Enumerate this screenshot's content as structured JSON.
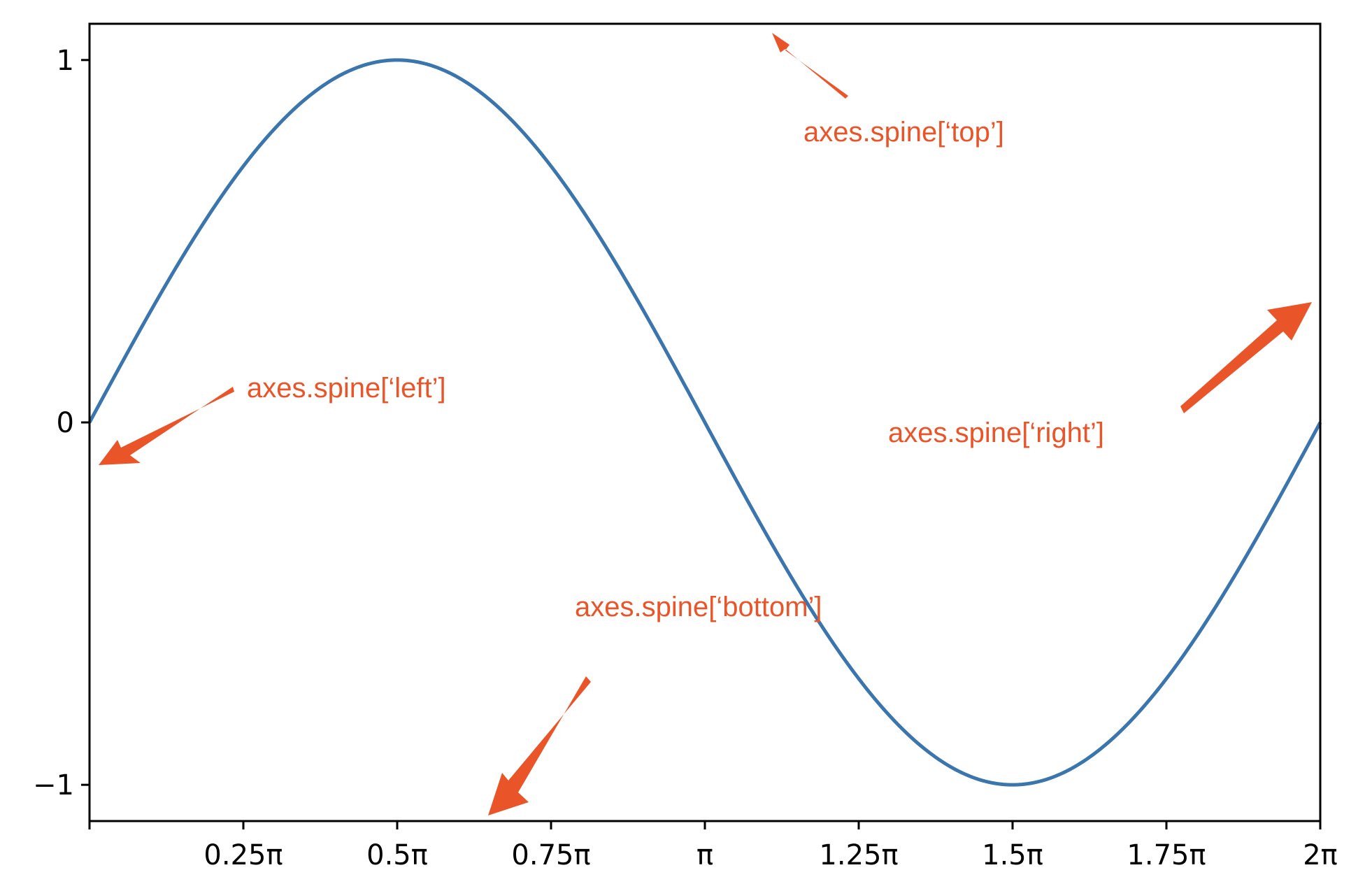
{
  "chart_data": {
    "type": "line",
    "title": "",
    "xlabel": "",
    "ylabel": "",
    "xlim": [
      0,
      6.283185307
    ],
    "ylim": [
      -1.1,
      1.1
    ],
    "grid": false,
    "function": "sin(x)",
    "series": [
      {
        "x": [
          0,
          0.3927,
          0.7854,
          1.1781,
          1.5708,
          1.9635,
          2.3562,
          2.7489,
          3.1416,
          3.5343,
          3.927,
          4.3197,
          4.7124,
          5.1051,
          5.4978,
          5.8905,
          6.2832
        ],
        "values": [
          0,
          0.383,
          0.707,
          0.924,
          1,
          0.924,
          0.707,
          0.383,
          0,
          -0.383,
          -0.707,
          -0.924,
          -1,
          -0.924,
          -0.707,
          -0.383,
          0
        ]
      }
    ],
    "line_color": "#3a75ae",
    "x_ticks": [
      {
        "value": 0,
        "label": ""
      },
      {
        "value": 0.7853981634,
        "label": "0.25π"
      },
      {
        "value": 1.5707963268,
        "label": "0.5π"
      },
      {
        "value": 2.3561944902,
        "label": "0.75π"
      },
      {
        "value": 3.1415926536,
        "label": "π"
      },
      {
        "value": 3.926990817,
        "label": "1.25π"
      },
      {
        "value": 4.7123889804,
        "label": "1.5π"
      },
      {
        "value": 5.4977871438,
        "label": "1.75π"
      },
      {
        "value": 6.2831853072,
        "label": "2π"
      }
    ],
    "y_ticks": [
      {
        "value": 1,
        "label": "1"
      },
      {
        "value": 0,
        "label": "0"
      },
      {
        "value": -1,
        "label": "−1"
      }
    ],
    "annotation_color": "#ea5429",
    "annotations": [
      {
        "text": "axes.spine[‘top’]",
        "target": "top spine"
      },
      {
        "text": "axes.spine[‘left’]",
        "target": "left spine"
      },
      {
        "text": "axes.spine[‘right’]",
        "target": "right spine"
      },
      {
        "text": "axes.spine[‘bottom’]",
        "target": "bottom spine"
      }
    ]
  }
}
